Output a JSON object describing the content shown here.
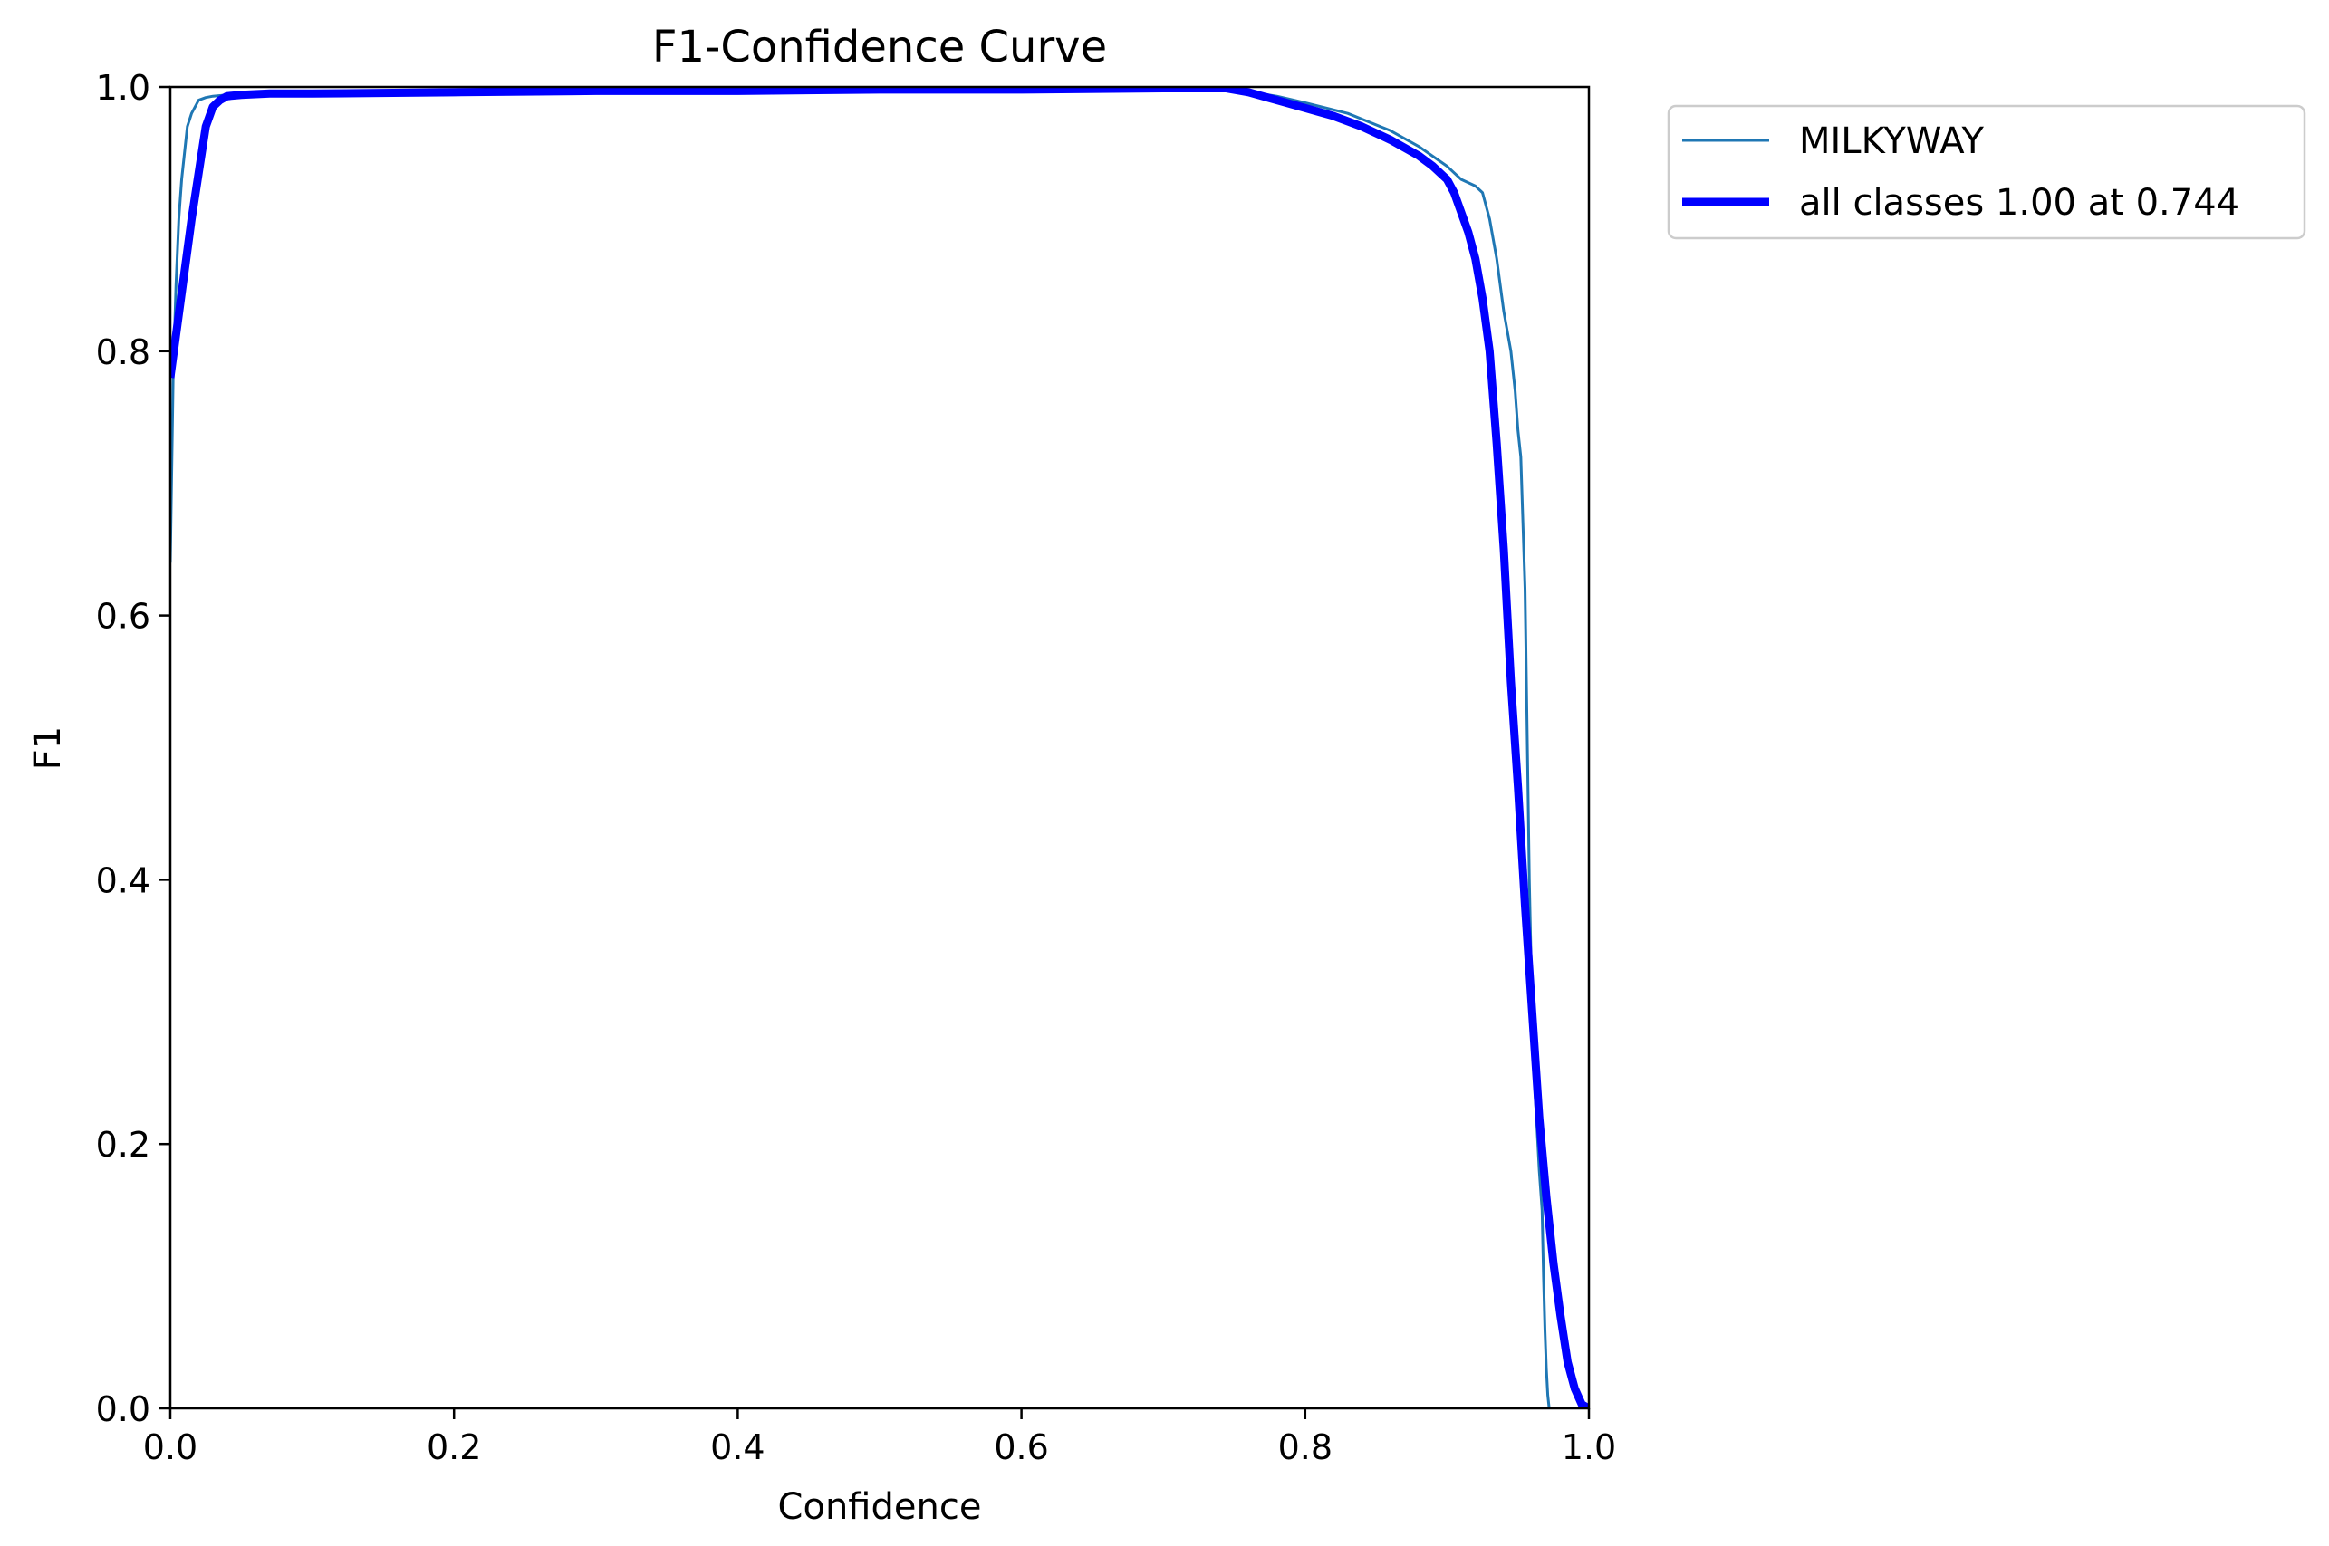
{
  "chart_data": {
    "type": "line",
    "title": "F1-Confidence Curve",
    "xlabel": "Confidence",
    "ylabel": "F1",
    "xlim": [
      0.0,
      1.0
    ],
    "ylim": [
      0.0,
      1.0
    ],
    "xticks": [
      0.0,
      0.2,
      0.4,
      0.6,
      0.8,
      1.0
    ],
    "yticks": [
      0.0,
      0.2,
      0.4,
      0.6,
      0.8,
      1.0
    ],
    "xtick_labels": [
      "0.0",
      "0.2",
      "0.4",
      "0.6",
      "0.8",
      "1.0"
    ],
    "ytick_labels": [
      "0.0",
      "0.2",
      "0.4",
      "0.6",
      "0.8",
      "1.0"
    ],
    "grid": false,
    "legend_position": "outside-top-right",
    "series": [
      {
        "name": "MILKYWAY",
        "color": "#1f77b4",
        "line_width": "thin",
        "x": [
          0.0,
          0.002,
          0.004,
          0.006,
          0.008,
          0.01,
          0.012,
          0.015,
          0.02,
          0.025,
          0.03,
          0.04,
          0.06,
          0.1,
          0.2,
          0.3,
          0.4,
          0.5,
          0.6,
          0.7,
          0.75,
          0.78,
          0.8,
          0.83,
          0.86,
          0.88,
          0.9,
          0.91,
          0.92,
          0.925,
          0.93,
          0.935,
          0.94,
          0.945,
          0.948,
          0.95,
          0.952,
          0.955,
          0.958,
          0.96,
          0.962,
          0.965,
          0.967,
          0.968,
          0.969,
          0.97,
          0.971,
          0.972,
          0.975,
          1.0
        ],
        "y": [
          0.64,
          0.78,
          0.85,
          0.9,
          0.93,
          0.95,
          0.97,
          0.98,
          0.99,
          0.992,
          0.993,
          0.994,
          0.995,
          0.995,
          0.996,
          0.997,
          0.997,
          0.998,
          0.998,
          0.999,
          0.998,
          0.993,
          0.988,
          0.98,
          0.967,
          0.955,
          0.94,
          0.93,
          0.925,
          0.92,
          0.9,
          0.87,
          0.83,
          0.8,
          0.77,
          0.74,
          0.72,
          0.62,
          0.4,
          0.3,
          0.24,
          0.18,
          0.15,
          0.1,
          0.06,
          0.03,
          0.01,
          0.0,
          0.0,
          0.0
        ]
      },
      {
        "name": "all classes 1.00 at 0.744",
        "color": "#0000ff",
        "line_width": "thick",
        "x": [
          0.0,
          0.005,
          0.01,
          0.015,
          0.02,
          0.025,
          0.03,
          0.035,
          0.04,
          0.05,
          0.07,
          0.1,
          0.2,
          0.3,
          0.4,
          0.5,
          0.6,
          0.7,
          0.744,
          0.76,
          0.78,
          0.8,
          0.82,
          0.84,
          0.86,
          0.88,
          0.89,
          0.9,
          0.905,
          0.91,
          0.915,
          0.92,
          0.925,
          0.93,
          0.935,
          0.94,
          0.945,
          0.95,
          0.955,
          0.96,
          0.965,
          0.97,
          0.975,
          0.98,
          0.985,
          0.99,
          0.995,
          1.0
        ],
        "y": [
          0.78,
          0.82,
          0.86,
          0.9,
          0.935,
          0.97,
          0.985,
          0.99,
          0.993,
          0.994,
          0.995,
          0.995,
          0.996,
          0.997,
          0.997,
          0.998,
          0.998,
          0.999,
          0.999,
          0.996,
          0.99,
          0.984,
          0.978,
          0.97,
          0.96,
          0.948,
          0.94,
          0.93,
          0.92,
          0.905,
          0.89,
          0.87,
          0.84,
          0.8,
          0.73,
          0.65,
          0.55,
          0.47,
          0.38,
          0.3,
          0.22,
          0.16,
          0.11,
          0.07,
          0.035,
          0.015,
          0.003,
          0.0
        ]
      }
    ]
  }
}
